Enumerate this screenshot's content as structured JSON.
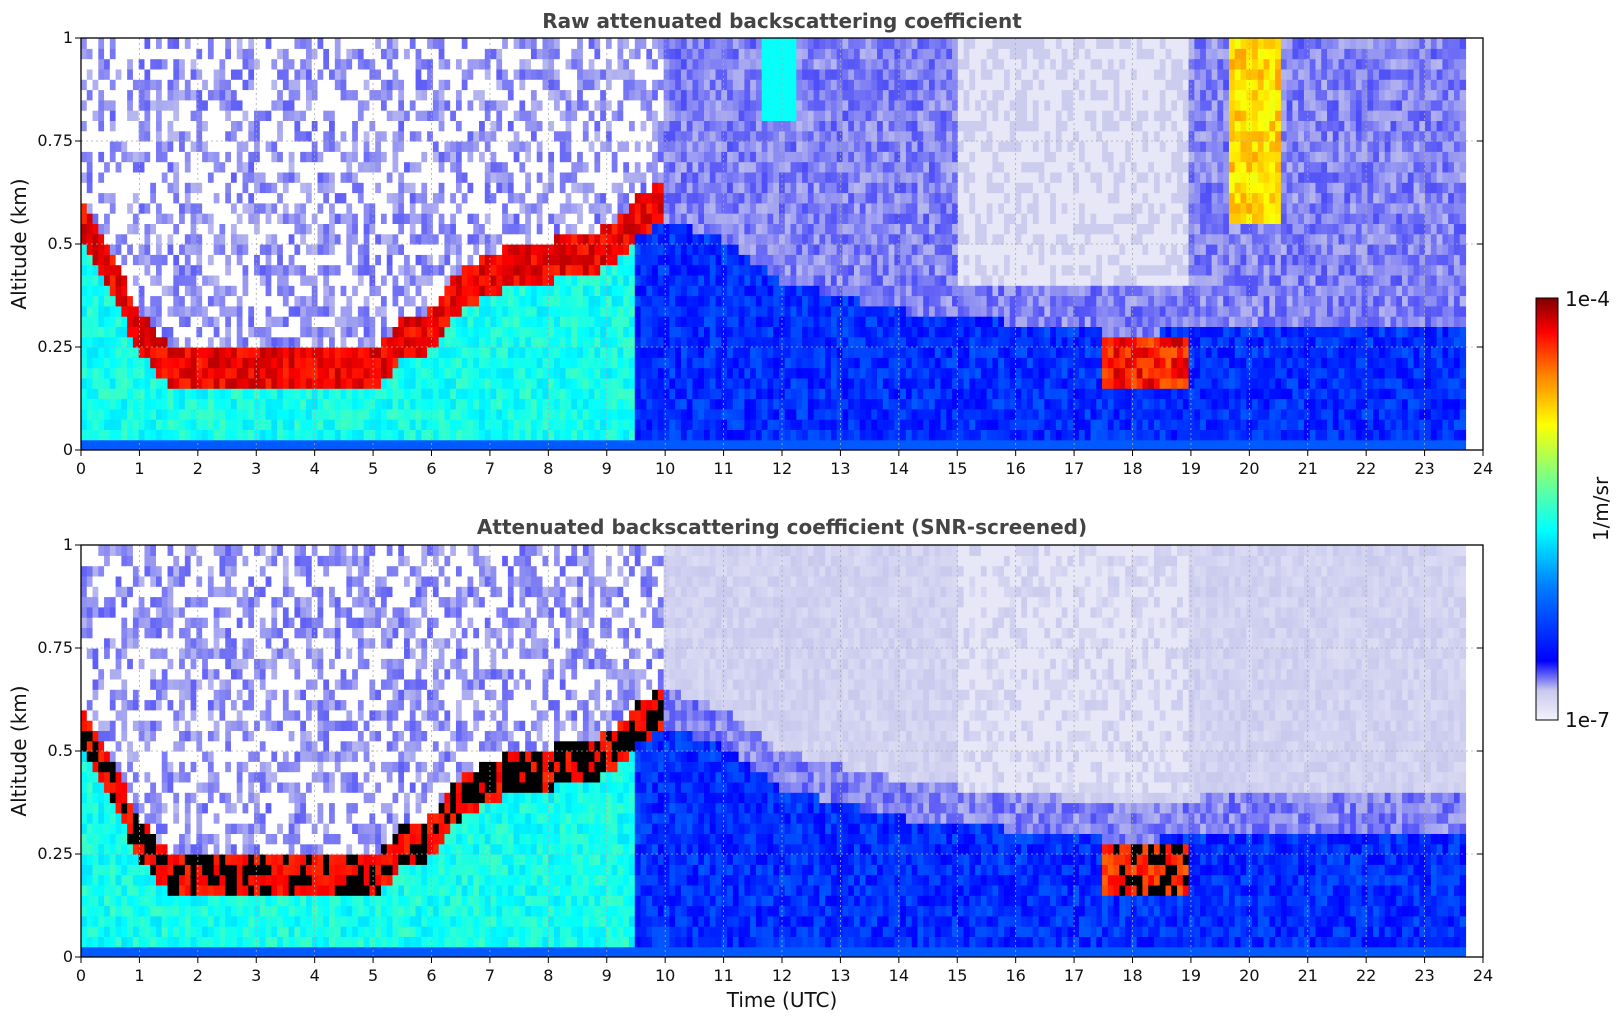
{
  "chart_data": [
    {
      "type": "heatmap",
      "title": "Raw attenuated backscattering coefficient",
      "xlabel": "",
      "ylabel": "Altitude (km)",
      "xlim": [
        0,
        24
      ],
      "ylim": [
        0,
        1
      ],
      "xticks": [
        "0",
        "1",
        "2",
        "3",
        "4",
        "5",
        "6",
        "7",
        "8",
        "9",
        "10",
        "11",
        "12",
        "13",
        "14",
        "15",
        "16",
        "17",
        "18",
        "19",
        "20",
        "21",
        "22",
        "23",
        "24"
      ],
      "yticks": [
        "0",
        "0.25",
        "0.5",
        "0.75",
        "1"
      ],
      "grid": true,
      "data_end_time": 23.7,
      "boundary_layer_top_km": [
        [
          0.0,
          0.55
        ],
        [
          0.5,
          0.42
        ],
        [
          1.0,
          0.28
        ],
        [
          1.5,
          0.2
        ],
        [
          2.0,
          0.2
        ],
        [
          3.0,
          0.2
        ],
        [
          4.0,
          0.18
        ],
        [
          5.0,
          0.18
        ],
        [
          5.5,
          0.26
        ],
        [
          6.0,
          0.28
        ],
        [
          6.5,
          0.38
        ],
        [
          7.0,
          0.42
        ],
        [
          8.0,
          0.45
        ],
        [
          9.0,
          0.48
        ],
        [
          9.5,
          0.55
        ],
        [
          10.0,
          0.6
        ],
        [
          11.0,
          0.55
        ],
        [
          12.0,
          0.45
        ],
        [
          14.0,
          0.38
        ],
        [
          16.0,
          0.35
        ],
        [
          18.0,
          0.32
        ],
        [
          20.0,
          0.35
        ],
        [
          22.0,
          0.35
        ],
        [
          23.7,
          0.35
        ]
      ]
    },
    {
      "type": "heatmap",
      "title": "Attenuated backscattering coefficient (SNR-screened)",
      "xlabel": "Time (UTC)",
      "ylabel": "Altitude (km)",
      "xlim": [
        0,
        24
      ],
      "ylim": [
        0,
        1
      ],
      "xticks": [
        "0",
        "1",
        "2",
        "3",
        "4",
        "5",
        "6",
        "7",
        "8",
        "9",
        "10",
        "11",
        "12",
        "13",
        "14",
        "15",
        "16",
        "17",
        "18",
        "19",
        "20",
        "21",
        "22",
        "23",
        "24"
      ],
      "yticks": [
        "0",
        "0.25",
        "0.5",
        "0.75",
        "1"
      ],
      "grid": true,
      "data_end_time": 23.7
    }
  ],
  "colorbar": {
    "label": "1/m/sr",
    "max_label": "1e-4",
    "min_label": "1e-7",
    "colormap": [
      "#f3f3fb",
      "#c8c8ee",
      "#0000ff",
      "#0080ff",
      "#00ffff",
      "#80ff80",
      "#ffff00",
      "#ff8000",
      "#ff0000",
      "#800000"
    ]
  }
}
